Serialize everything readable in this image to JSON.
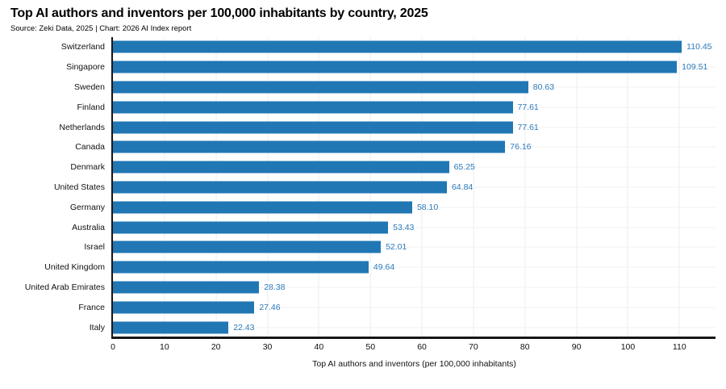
{
  "chart_data": {
    "type": "bar",
    "orientation": "horizontal",
    "title": "Top AI authors and inventors per 100,000 inhabitants by country, 2025",
    "source": "Source: Zeki Data, 2025 | Chart: 2026 AI Index report",
    "xlabel": "Top AI authors and inventors (per 100,000 inhabitants)",
    "categories": [
      "Switzerland",
      "Singapore",
      "Sweden",
      "Finland",
      "Netherlands",
      "Canada",
      "Denmark",
      "United States",
      "Germany",
      "Australia",
      "Israel",
      "United Kingdom",
      "United Arab Emirates",
      "France",
      "Italy"
    ],
    "values": [
      110.45,
      109.51,
      80.63,
      77.61,
      77.61,
      76.16,
      65.25,
      64.84,
      58.1,
      53.43,
      52.01,
      49.64,
      28.38,
      27.46,
      22.43
    ],
    "value_labels": [
      "110.45",
      "109.51",
      "80.63",
      "77.61",
      "77.61",
      "76.16",
      "65.25",
      "64.84",
      "58.10",
      "53.43",
      "52.01",
      "49.64",
      "28.38",
      "27.46",
      "22.43"
    ],
    "xticks": [
      0,
      10,
      20,
      30,
      40,
      50,
      60,
      70,
      80,
      90,
      100,
      110
    ],
    "xlim": [
      0,
      117
    ],
    "grid": true,
    "legend_position": "none",
    "colors": {
      "bar": "#2077B4",
      "value_label": "#2B7BBD",
      "grid_vertical": "#ededed",
      "grid_horizontal": "#f1f1f1",
      "axis": "#161616",
      "text": "#111111"
    }
  }
}
